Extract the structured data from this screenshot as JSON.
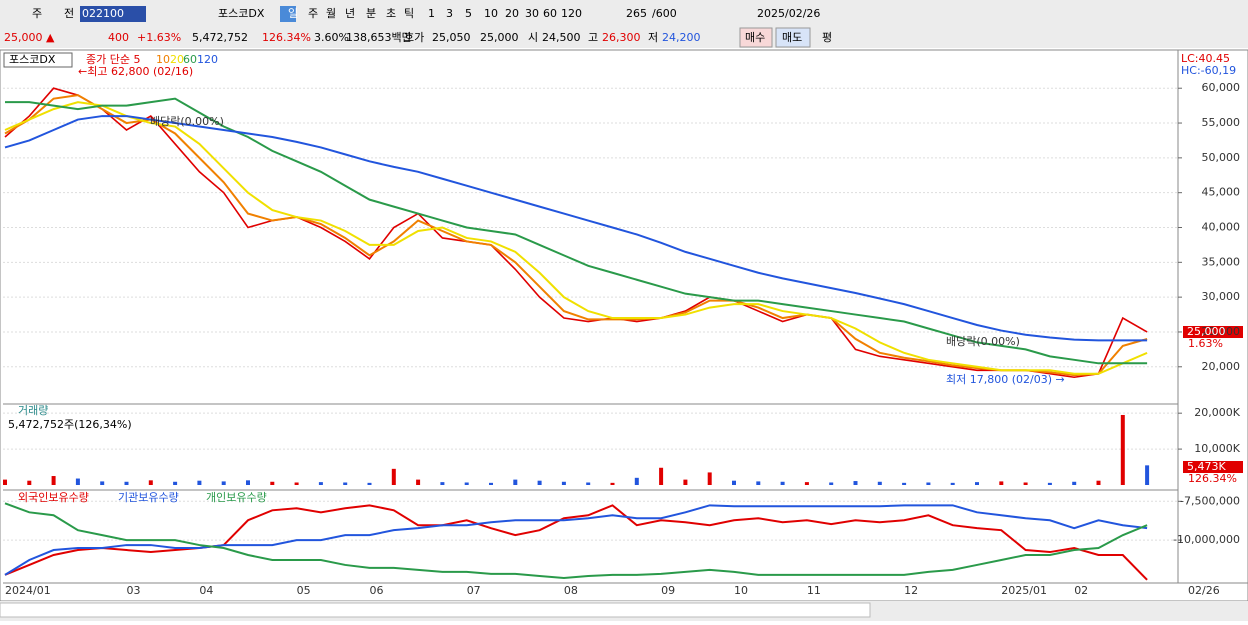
{
  "toolbar": {
    "items": [
      "주",
      "전",
      "022100",
      "포스코DX",
      "일",
      "주",
      "월",
      "년",
      "분",
      "초",
      "틱",
      "1",
      "3",
      "5",
      "10",
      "20",
      "30",
      "60",
      "120",
      "265",
      "/600",
      "2025/02/26"
    ]
  },
  "infobar": {
    "price": "25,000 ▲",
    "change": "400",
    "rate": "+1.63%",
    "volume": "5,472,752",
    "volume_rate": "126.34%",
    "turnover": "3.60%",
    "amount": "138,653백만",
    "quote_label": "호가",
    "ask": "25,050",
    "bid": "25,000",
    "open_label": "시",
    "open": "24,500",
    "high_label": "고",
    "high": "26,300",
    "low_label": "저",
    "low": "24,200",
    "buy": "매수",
    "sell": "매도",
    "avg": "평"
  },
  "chart_data": [
    {
      "type": "line",
      "title": "포스코DX",
      "categories": [
        "2024/01",
        null,
        null,
        null,
        null,
        "03",
        null,
        null,
        "04",
        null,
        null,
        null,
        "05",
        null,
        null,
        "06",
        null,
        null,
        null,
        "07",
        null,
        null,
        null,
        "08",
        null,
        null,
        null,
        "09",
        null,
        null,
        "10",
        null,
        null,
        "11",
        null,
        null,
        null,
        "12",
        null,
        null,
        null,
        "2025/01",
        null,
        null,
        "02",
        null,
        null,
        null
      ],
      "x_end_label": "02/26",
      "series": [
        {
          "name": "종가 단순 5",
          "color": "#e00000",
          "values": [
            53000,
            56000,
            60000,
            59000,
            57000,
            54000,
            56000,
            52000,
            48000,
            45000,
            40000,
            41000,
            41500,
            40000,
            38000,
            35500,
            40000,
            42000,
            38500,
            38000,
            37500,
            34000,
            30000,
            27000,
            26500,
            27000,
            26500,
            27000,
            28000,
            30000,
            29500,
            28000,
            26500,
            27500,
            27000,
            22500,
            21500,
            21000,
            20500,
            20000,
            19500,
            19500,
            19500,
            19000,
            18500,
            19000,
            27000,
            25000
          ]
        },
        {
          "name": "10",
          "color": "#f08000",
          "values": [
            53500,
            55500,
            58500,
            59000,
            57000,
            55000,
            55500,
            53500,
            50000,
            46500,
            42000,
            41000,
            41500,
            40500,
            38500,
            36000,
            38000,
            41000,
            39500,
            38000,
            37500,
            35000,
            31500,
            28000,
            26800,
            26800,
            26800,
            27000,
            27800,
            29500,
            29500,
            28500,
            27000,
            27500,
            27000,
            24000,
            22000,
            21300,
            20800,
            20200,
            19800,
            19500,
            19500,
            19200,
            18800,
            19000,
            23000,
            24000
          ]
        },
        {
          "name": "20",
          "color": "#f0e000",
          "values": [
            54000,
            55500,
            57000,
            58000,
            57500,
            56000,
            55000,
            54500,
            52000,
            48500,
            45000,
            42500,
            41500,
            41000,
            39500,
            37500,
            37500,
            39500,
            40000,
            38500,
            38000,
            36500,
            33500,
            30000,
            28000,
            27000,
            27000,
            27000,
            27500,
            28500,
            29000,
            29000,
            28000,
            27500,
            27000,
            25500,
            23500,
            22000,
            21000,
            20500,
            20000,
            19500,
            19500,
            19500,
            19000,
            19000,
            20500,
            22000
          ]
        },
        {
          "name": "60",
          "color": "#2a9a4a",
          "values": [
            58000,
            58000,
            57500,
            57000,
            57500,
            57500,
            58000,
            58500,
            56500,
            54500,
            53000,
            51000,
            49500,
            48000,
            46000,
            44000,
            43000,
            42000,
            41000,
            40000,
            39500,
            39000,
            37500,
            36000,
            34500,
            33500,
            32500,
            31500,
            30500,
            30000,
            29500,
            29500,
            29000,
            28500,
            28000,
            27500,
            27000,
            26500,
            25500,
            24500,
            23500,
            23000,
            22500,
            21500,
            21000,
            20500,
            20500,
            20500
          ]
        },
        {
          "name": "120",
          "color": "#2255dd",
          "values": [
            51500,
            52500,
            54000,
            55500,
            56000,
            56000,
            55500,
            55000,
            54500,
            54000,
            53500,
            53000,
            52300,
            51500,
            50500,
            49500,
            48700,
            48000,
            47000,
            46000,
            45000,
            44000,
            43000,
            42000,
            41000,
            40000,
            39000,
            37800,
            36500,
            35500,
            34500,
            33500,
            32700,
            32000,
            31300,
            30600,
            29800,
            29000,
            28000,
            27000,
            26000,
            25200,
            24600,
            24200,
            23900,
            23800,
            23800,
            23800
          ]
        }
      ],
      "ylim": [
        14800,
        65200
      ],
      "yticks": [
        {
          "value": 20000,
          "label": "20,000"
        },
        {
          "value": 25000,
          "label": "25,000"
        },
        {
          "value": 30000,
          "label": "30,000"
        },
        {
          "value": 35000,
          "label": "35,000"
        },
        {
          "value": 40000,
          "label": "40,000"
        },
        {
          "value": 45000,
          "label": "45,000"
        },
        {
          "value": 50000,
          "label": "50,000"
        },
        {
          "value": 55000,
          "label": "55,000"
        },
        {
          "value": 60000,
          "label": "60,000"
        }
      ],
      "grid": true,
      "annotations": [
        "←최고 62,800 (02/16)",
        "배당락(0.00%)",
        "배당락(0.00%)",
        "최저 17,800 (02/03) →"
      ],
      "lc": "LC:40.45",
      "hc": "HC:-60,19",
      "last_price": "25,000",
      "last_rate": "1.63%"
    },
    {
      "type": "bar",
      "title": "거래량",
      "subtitle": "5,472,752주(126,34%)",
      "values": [
        1500,
        1200,
        2500,
        1800,
        1000,
        900,
        1300,
        900,
        1200,
        1000,
        1300,
        900,
        700,
        800,
        700,
        600,
        4500,
        1500,
        800,
        700,
        600,
        1500,
        1200,
        900,
        700,
        600,
        2000,
        4800,
        1500,
        3500,
        1200,
        1000,
        900,
        800,
        700,
        1100,
        900,
        600,
        700,
        600,
        800,
        1000,
        700,
        600,
        900,
        1200,
        19500,
        5473
      ],
      "up_color": "#e00000",
      "down_color": "#2255dd",
      "ylim": [
        0,
        22000
      ],
      "yticks": [
        {
          "value": 10000,
          "label": "10,000K"
        },
        {
          "value": 20000,
          "label": "20,000K"
        }
      ],
      "last_label": "5,473K",
      "last_rate": "126.34%"
    },
    {
      "type": "line",
      "series": [
        {
          "name": "외국인보유수량",
          "color": "#e00000",
          "values": [
            -12240000,
            -11600000,
            -10960000,
            -10640000,
            -10510000,
            -10640000,
            -10770000,
            -10640000,
            -10510000,
            -10320000,
            -8720000,
            -8080000,
            -7950000,
            -8210000,
            -7950000,
            -7760000,
            -8080000,
            -9040000,
            -9040000,
            -8720000,
            -9230000,
            -9680000,
            -9360000,
            -8590000,
            -8400000,
            -7760000,
            -9040000,
            -8720000,
            -8850000,
            -9040000,
            -8720000,
            -8590000,
            -8850000,
            -8720000,
            -8970000,
            -8720000,
            -8850000,
            -8720000,
            -8400000,
            -9040000,
            -9230000,
            -9360000,
            -10640000,
            -10770000,
            -10510000,
            -10960000,
            -10960000,
            -12560000
          ]
        },
        {
          "name": "기관보유수량",
          "color": "#2255dd",
          "values": [
            -12240000,
            -11280000,
            -10640000,
            -10510000,
            -10510000,
            -10320000,
            -10320000,
            -10510000,
            -10510000,
            -10320000,
            -10320000,
            -10320000,
            -10000000,
            -10000000,
            -9680000,
            -9680000,
            -9360000,
            -9230000,
            -9040000,
            -9040000,
            -8850000,
            -8720000,
            -8720000,
            -8720000,
            -8590000,
            -8400000,
            -8590000,
            -8590000,
            -8210000,
            -7760000,
            -7820000,
            -7820000,
            -7820000,
            -7820000,
            -7820000,
            -7820000,
            -7820000,
            -7760000,
            -7760000,
            -7760000,
            -8210000,
            -8400000,
            -8590000,
            -8720000,
            -9230000,
            -8720000,
            -9040000,
            -9230000
          ]
        },
        {
          "name": "개인보유수량",
          "color": "#2a9a4a",
          "values": [
            -7630000,
            -8210000,
            -8400000,
            -9360000,
            -9680000,
            -10000000,
            -10000000,
            -10000000,
            -10320000,
            -10510000,
            -10960000,
            -11280000,
            -11280000,
            -11280000,
            -11600000,
            -11790000,
            -11790000,
            -11920000,
            -12050000,
            -12050000,
            -12180000,
            -12180000,
            -12310000,
            -12440000,
            -12310000,
            -12240000,
            -12240000,
            -12180000,
            -12050000,
            -11920000,
            -12050000,
            -12240000,
            -12240000,
            -12240000,
            -12240000,
            -12240000,
            -12240000,
            -12240000,
            -12050000,
            -11920000,
            -11600000,
            -11280000,
            -10960000,
            -10960000,
            -10640000,
            -10510000,
            -9680000,
            -9040000
          ]
        }
      ],
      "ylim": [
        -12700000,
        -6900000
      ],
      "yticks": [
        {
          "value": -7500000,
          "label": "-7,500,000"
        },
        {
          "value": -10000000,
          "label": "-10,000,000"
        }
      ]
    }
  ]
}
